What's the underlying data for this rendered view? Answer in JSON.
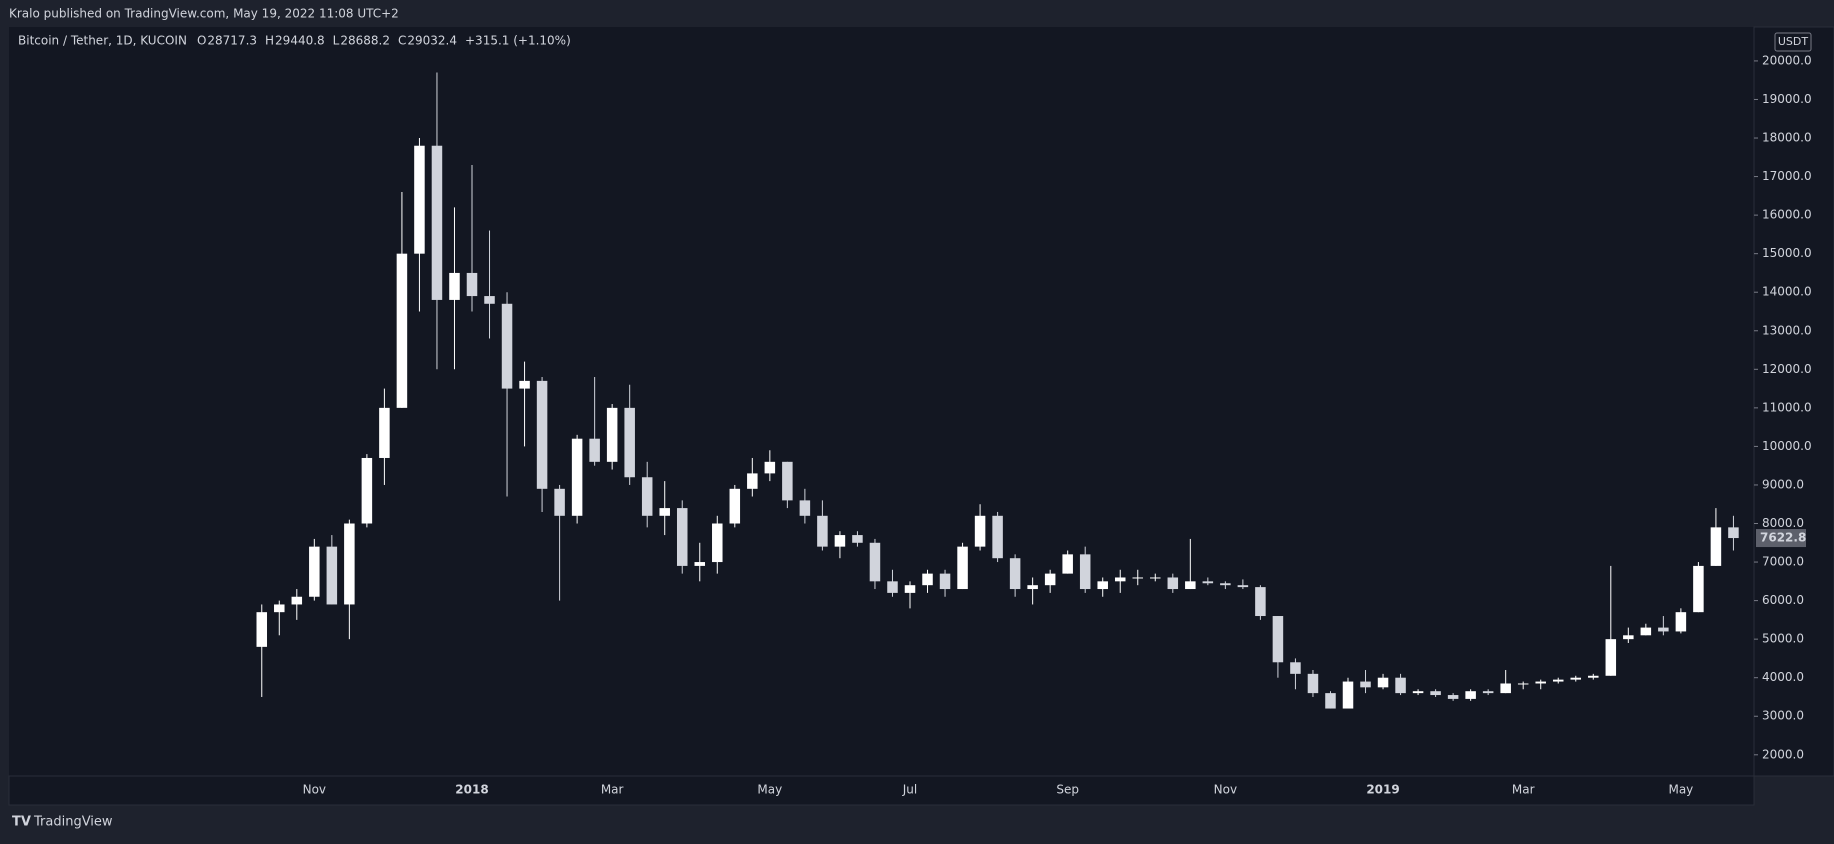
{
  "header": {
    "publisher_line": "Kralo published on TradingView.com, May 19, 2022 11:08 UTC+2"
  },
  "legend": {
    "symbol": "Bitcoin / Tether, 1D, KUCOIN",
    "ohlc": [
      {
        "label": "O",
        "value": "28717.3"
      },
      {
        "label": "H",
        "value": "29440.8"
      },
      {
        "label": "L",
        "value": "28688.2"
      },
      {
        "label": "C",
        "value": "29032.4"
      }
    ],
    "change": "+315.1 (+1.10%)"
  },
  "footer": {
    "brand": "TradingView"
  },
  "chart_data": {
    "type": "candlestick",
    "unit": "USDT",
    "up_color": "#ffffff",
    "down_color": "#d1d4dc",
    "grid": false,
    "categories": [
      null,
      null,
      null,
      "Nov",
      null,
      null,
      null,
      null,
      null,
      null,
      null,
      null,
      "2018",
      null,
      null,
      null,
      null,
      null,
      null,
      null,
      "Mar",
      null,
      null,
      null,
      null,
      null,
      null,
      null,
      null,
      "May",
      null,
      null,
      null,
      null,
      null,
      null,
      null,
      "Jul",
      null,
      null,
      null,
      null,
      null,
      null,
      null,
      null,
      "Sep",
      null,
      null,
      null,
      null,
      null,
      null,
      null,
      null,
      "Nov",
      null,
      null,
      null,
      null,
      null,
      null,
      null,
      null,
      "2019",
      null,
      null,
      null,
      null,
      null,
      null,
      null,
      "Mar",
      null,
      null,
      null,
      null,
      null,
      null,
      null,
      null,
      "May",
      null,
      null,
      null
    ],
    "open": [
      4800,
      5700,
      5900,
      6100,
      7400,
      5900,
      8000,
      9700,
      11000,
      15000,
      17800,
      13800,
      14500,
      13900,
      13700,
      11500,
      11700,
      8900,
      8200,
      10200,
      9600,
      11000,
      9200,
      8200,
      8400,
      6900,
      7000,
      8000,
      8900,
      9300,
      9600,
      8600,
      8200,
      7400,
      7700,
      7500,
      6500,
      6200,
      6400,
      6700,
      6300,
      7400,
      8200,
      7100,
      6300,
      6400,
      6700,
      7200,
      6300,
      6500,
      6600,
      6600,
      6600,
      6300,
      6500,
      6450,
      6400,
      6350,
      5600,
      4400,
      4100,
      3600,
      3200,
      3900,
      3750,
      4000,
      3600,
      3650,
      3550,
      3450,
      3650,
      3600,
      3850,
      3850,
      3900,
      3950,
      4000,
      4050,
      5000,
      5100,
      5300,
      5200,
      5700,
      6900,
      7900
    ],
    "high": [
      5900,
      6000,
      6300,
      7600,
      7700,
      8100,
      9800,
      11500,
      16600,
      18000,
      19700,
      16200,
      17300,
      15600,
      14000,
      12200,
      11800,
      9000,
      10300,
      11800,
      11100,
      11600,
      9600,
      9100,
      8600,
      7500,
      8200,
      9000,
      9700,
      9900,
      9600,
      8900,
      8600,
      7800,
      7800,
      7600,
      6800,
      6500,
      6800,
      6800,
      7500,
      8500,
      8300,
      7200,
      6600,
      6800,
      7300,
      7400,
      6600,
      6800,
      6800,
      6700,
      6700,
      7600,
      6600,
      6500,
      6550,
      6400,
      5600,
      4500,
      4200,
      3650,
      4000,
      4200,
      4100,
      4100,
      3700,
      3700,
      3600,
      3700,
      3700,
      4200,
      3900,
      3950,
      4000,
      4050,
      4100,
      6900,
      5300,
      5400,
      5600,
      5800,
      7000,
      8400,
      8200
    ],
    "low": [
      3500,
      5100,
      5500,
      6000,
      5900,
      5000,
      7900,
      9000,
      11000,
      13500,
      12000,
      12000,
      13500,
      12800,
      8700,
      10000,
      8300,
      6000,
      8000,
      9500,
      9400,
      9000,
      7900,
      7700,
      6700,
      6500,
      6700,
      7900,
      8700,
      9100,
      8400,
      8000,
      7300,
      7100,
      7400,
      6300,
      6100,
      5800,
      6200,
      6100,
      6300,
      7300,
      7000,
      6100,
      5900,
      6200,
      6700,
      6200,
      6100,
      6200,
      6400,
      6500,
      6200,
      6300,
      6400,
      6300,
      6300,
      5500,
      4000,
      3700,
      3500,
      3200,
      3200,
      3600,
      3700,
      3550,
      3550,
      3500,
      3400,
      3400,
      3550,
      3600,
      3700,
      3700,
      3850,
      3900,
      3950,
      4050,
      4900,
      5100,
      5100,
      5150,
      5700,
      6900,
      7300
    ],
    "close": [
      5700,
      5900,
      6100,
      7400,
      5900,
      8000,
      9700,
      11000,
      15000,
      17800,
      13800,
      14500,
      13900,
      13700,
      11500,
      11700,
      8900,
      8200,
      10200,
      9600,
      11000,
      9200,
      8200,
      8400,
      6900,
      7000,
      8000,
      8900,
      9300,
      9600,
      8600,
      8200,
      7400,
      7700,
      7500,
      6500,
      6200,
      6400,
      6700,
      6300,
      7400,
      8200,
      7100,
      6300,
      6400,
      6700,
      7200,
      6300,
      6500,
      6600,
      6600,
      6600,
      6300,
      6500,
      6450,
      6400,
      6350,
      5600,
      4400,
      4100,
      3600,
      3200,
      3900,
      3750,
      4000,
      3600,
      3650,
      3550,
      3450,
      3650,
      3600,
      3850,
      3850,
      3900,
      3950,
      4000,
      4050,
      5000,
      5100,
      5300,
      5200,
      5700,
      6900,
      7900,
      7622.8
    ],
    "ylim": [
      1450,
      20880
    ],
    "yticks": [
      {
        "value": 2000,
        "label": "2000.0"
      },
      {
        "value": 3000,
        "label": "3000.0"
      },
      {
        "value": 4000,
        "label": "4000.0"
      },
      {
        "value": 5000,
        "label": "5000.0"
      },
      {
        "value": 6000,
        "label": "6000.0"
      },
      {
        "value": 7000,
        "label": "7000.0"
      },
      {
        "value": 8000,
        "label": "8000.0"
      },
      {
        "value": 9000,
        "label": "9000.0"
      },
      {
        "value": 10000,
        "label": "10000.0"
      },
      {
        "value": 11000,
        "label": "11000.0"
      },
      {
        "value": 12000,
        "label": "12000.0"
      },
      {
        "value": 13000,
        "label": "13000.0"
      },
      {
        "value": 14000,
        "label": "14000.0"
      },
      {
        "value": 15000,
        "label": "15000.0"
      },
      {
        "value": 16000,
        "label": "16000.0"
      },
      {
        "value": 17000,
        "label": "17000.0"
      },
      {
        "value": 18000,
        "label": "18000.0"
      },
      {
        "value": 19000,
        "label": "19000.0"
      },
      {
        "value": 20000,
        "label": "20000.0"
      }
    ]
  }
}
